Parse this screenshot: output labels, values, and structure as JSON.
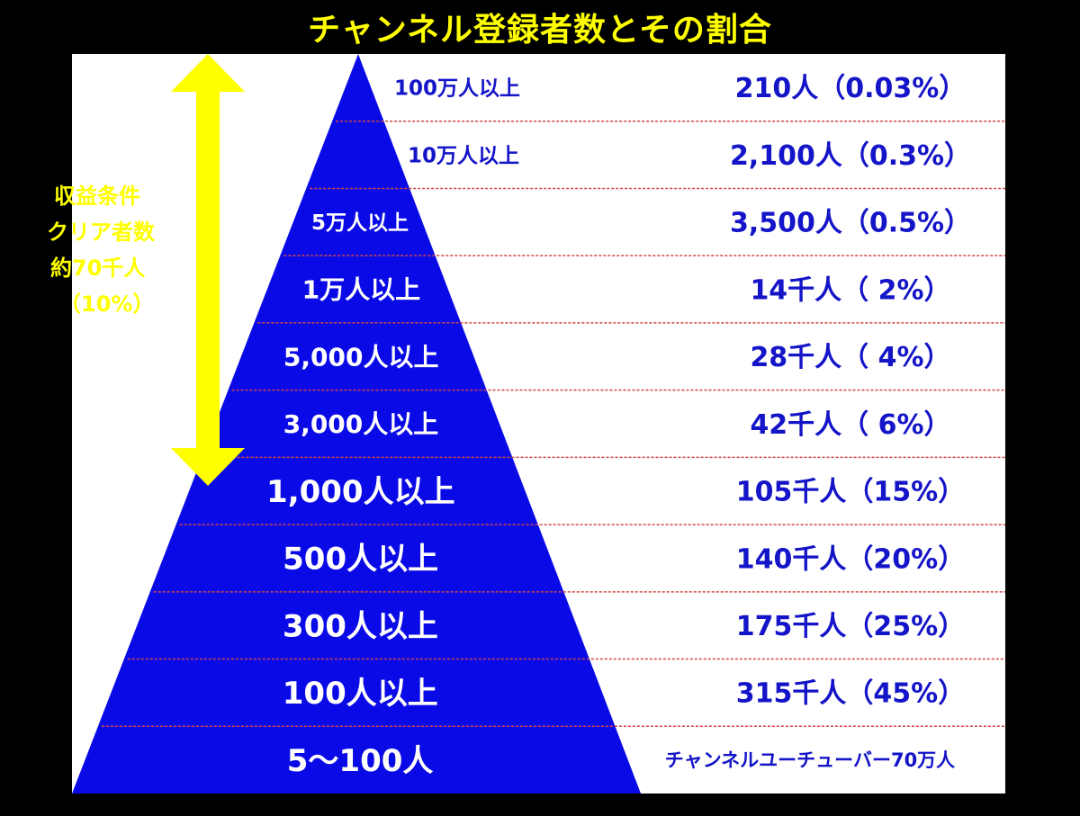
{
  "title": "チャンネル登録者数とその割合",
  "side_note": {
    "line1": "収益条件",
    "line2": "クリア者数",
    "line3": "約70千人",
    "line4": "（10%）"
  },
  "colors": {
    "background": "#000000",
    "pyramid": "#0a0ae6",
    "accent_yellow": "#ffff00",
    "count_text": "#1414c8",
    "divider": "#d24646"
  },
  "tiers": [
    {
      "label": "100万人以上",
      "count": "210人（0.03%）"
    },
    {
      "label": "10万人以上",
      "count": "2,100人（0.3%）"
    },
    {
      "label": "5万人以上",
      "count": "3,500人（0.5%）"
    },
    {
      "label": "1万人以上",
      "count": "14千人（ 2%）"
    },
    {
      "label": "5,000人以上",
      "count": "28千人（ 4%）"
    },
    {
      "label": "3,000人以上",
      "count": "42千人（ 6%）"
    },
    {
      "label": "1,000人以上",
      "count": "105千人（15%）"
    },
    {
      "label": "500人以上",
      "count": "140千人（20%）"
    },
    {
      "label": "300人以上",
      "count": "175千人（25%）"
    },
    {
      "label": "100人以上",
      "count": "315千人（45%）"
    },
    {
      "label": "5～100人",
      "count": "チャンネルユーチューバー70万人"
    }
  ]
}
